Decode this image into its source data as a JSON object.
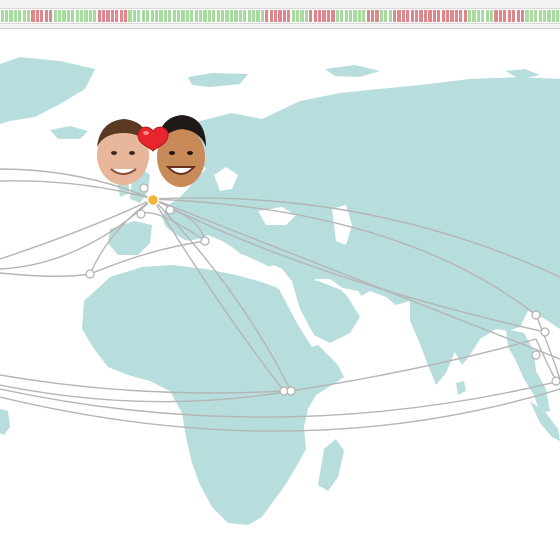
{
  "map": {
    "land_color": "#b7dedc",
    "route_color": "#b5b5b5",
    "ocean_color": "#ffffff",
    "home_marker_color": "#f2b339",
    "city_marker_color": "#ffffff"
  },
  "timeline": {
    "tick_colors": {
      "red": "#e0868d",
      "green": "#a8dba0",
      "gray": "#c9c9c9"
    },
    "pattern": "gggggggrrrrrggggggggggrrrrrrrgggggggggggggggggggggggggggggggrrrrrrggggrrrrrrgggggggrrrgggrrrrrrrrrrrrrrrrrggggggrrrrrrrgggggggg"
  },
  "overlay": {
    "avatars": [
      "person-avatar-left",
      "person-avatar-right"
    ],
    "heart_icon": "red-heart"
  }
}
